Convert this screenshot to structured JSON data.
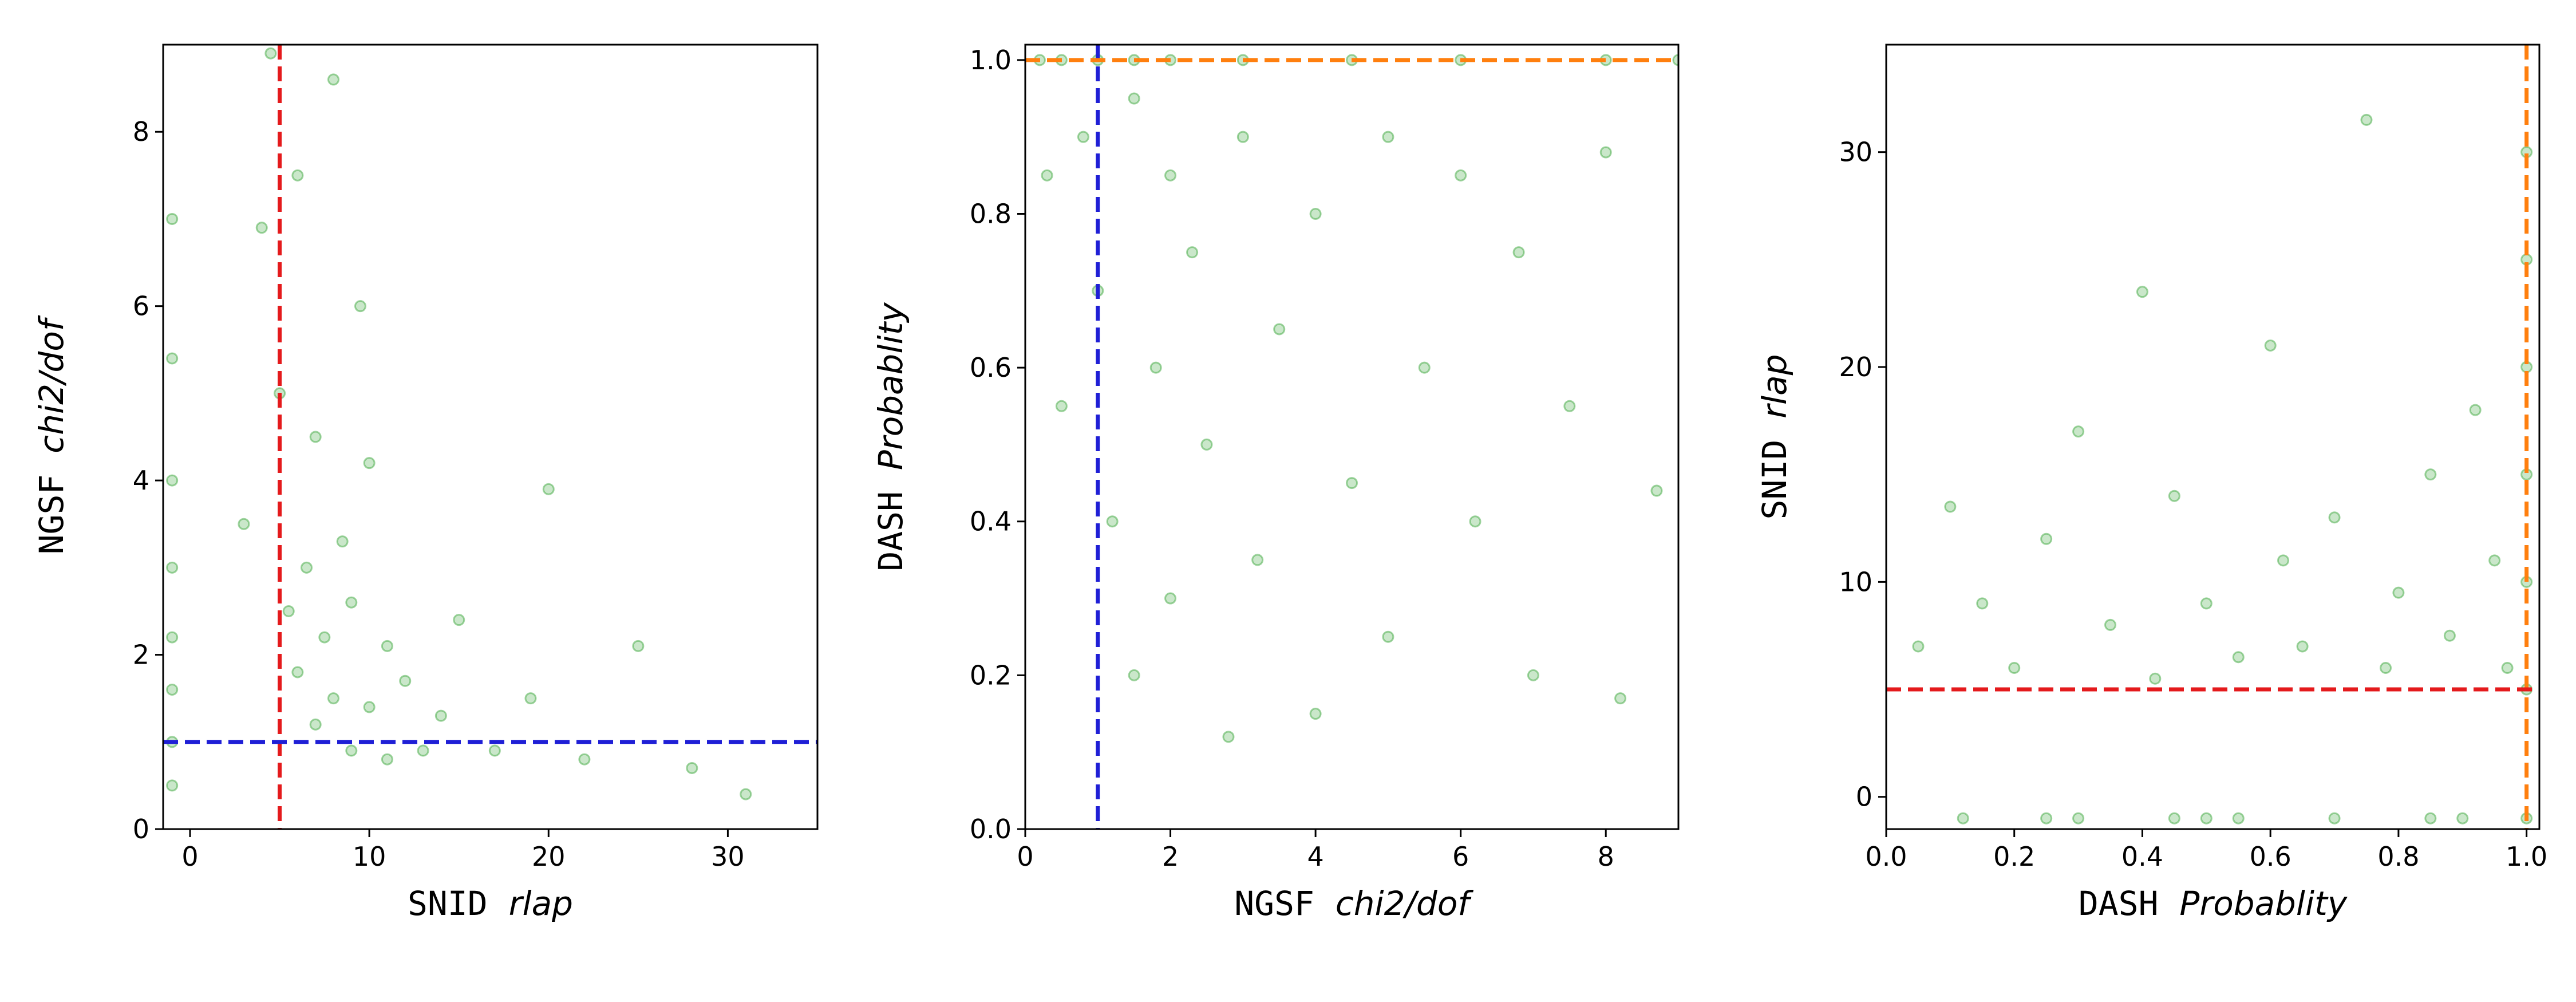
{
  "chart_data": [
    {
      "type": "scatter",
      "xlabel": {
        "prefix": "SNID",
        "name": "rlap"
      },
      "ylabel": {
        "prefix": "NGSF",
        "name": "chi2/dof"
      },
      "color": "#2ca02c",
      "x": [
        -1,
        -1,
        -1,
        -1,
        -1,
        -1,
        -1,
        -1,
        3,
        4,
        4.5,
        5,
        5.5,
        6,
        6,
        6.5,
        7,
        7,
        7.5,
        8,
        8,
        8.5,
        9,
        9,
        9.5,
        10,
        10,
        11,
        11,
        12,
        13,
        14,
        15,
        17,
        19,
        20,
        22,
        25,
        28,
        31
      ],
      "y": [
        0.5,
        1,
        1.6,
        2.2,
        3,
        4,
        5.4,
        7,
        3.5,
        6.9,
        8.9,
        5,
        2.5,
        7.5,
        1.8,
        3,
        1.2,
        4.5,
        2.2,
        8.6,
        1.5,
        3.3,
        0.9,
        2.6,
        6,
        1.4,
        4.2,
        0.8,
        2.1,
        1.7,
        0.9,
        1.3,
        2.4,
        0.9,
        1.5,
        3.9,
        0.8,
        2.1,
        0.7,
        0.4
      ],
      "xlim": [
        -1.5,
        35
      ],
      "ylim": [
        0,
        9
      ],
      "xticks": [
        0,
        10,
        20,
        30
      ],
      "yticks": [
        0,
        2,
        4,
        6,
        8
      ],
      "vlines": [
        {
          "value": 5,
          "color": "#e41a1c"
        }
      ],
      "hlines": [
        {
          "value": 1,
          "color": "#1f1fd6"
        }
      ]
    },
    {
      "type": "scatter",
      "xlabel": {
        "prefix": "NGSF",
        "name": "chi2/dof"
      },
      "ylabel": {
        "prefix": "DASH",
        "name": "Probablity"
      },
      "color": "#2ca02c",
      "x": [
        0.2,
        0.5,
        1,
        1.5,
        2,
        3,
        4.5,
        6,
        8,
        9,
        0.3,
        0.5,
        0.8,
        1,
        1.2,
        1.5,
        1.5,
        1.8,
        2,
        2,
        2.3,
        2.5,
        2.8,
        3,
        3.2,
        3.5,
        4,
        4,
        4.5,
        5,
        5,
        5.5,
        6,
        6.2,
        6.8,
        7,
        7.5,
        8,
        8.2,
        8.7
      ],
      "y": [
        1,
        1,
        1,
        1,
        1,
        1,
        1,
        1,
        1,
        1,
        0.85,
        0.55,
        0.9,
        0.7,
        0.4,
        0.95,
        0.2,
        0.6,
        0.85,
        0.3,
        0.75,
        0.5,
        0.12,
        0.9,
        0.35,
        0.65,
        0.8,
        0.15,
        0.45,
        0.9,
        0.25,
        0.6,
        0.85,
        0.4,
        0.75,
        0.2,
        0.55,
        0.88,
        0.17,
        0.44
      ],
      "xlim": [
        0,
        9
      ],
      "ylim": [
        0,
        1.02
      ],
      "xticks": [
        0,
        2,
        4,
        6,
        8
      ],
      "yticks": [
        {
          "value": 0,
          "label": "0.0"
        },
        0.2,
        0.4,
        0.6,
        0.8,
        {
          "value": 1,
          "label": "1.0"
        }
      ],
      "vlines": [
        {
          "value": 1,
          "color": "#1f1fd6"
        }
      ],
      "hlines": [
        {
          "value": 1,
          "color": "#ff7f0e"
        }
      ]
    },
    {
      "type": "scatter",
      "xlabel": {
        "prefix": "DASH",
        "name": "Probablity"
      },
      "ylabel": {
        "prefix": "SNID",
        "name": "rlap"
      },
      "color": "#2ca02c",
      "x": [
        0.12,
        0.25,
        0.3,
        0.45,
        0.5,
        0.55,
        0.7,
        0.85,
        0.9,
        1,
        1,
        1,
        1,
        1,
        1,
        1,
        0.05,
        0.1,
        0.15,
        0.2,
        0.25,
        0.3,
        0.35,
        0.4,
        0.42,
        0.45,
        0.5,
        0.55,
        0.6,
        0.62,
        0.65,
        0.7,
        0.75,
        0.78,
        0.8,
        0.85,
        0.88,
        0.92,
        0.95,
        0.97
      ],
      "y": [
        -1,
        -1,
        -1,
        -1,
        -1,
        -1,
        -1,
        -1,
        -1,
        -1,
        5,
        10,
        15,
        20,
        25,
        30,
        7,
        13.5,
        9,
        6,
        12,
        17,
        8,
        23.5,
        5.5,
        14,
        9,
        6.5,
        21,
        11,
        7,
        13,
        31.5,
        6,
        9.5,
        15,
        7.5,
        18,
        11,
        6
      ],
      "xlim": [
        0,
        1.02
      ],
      "ylim": [
        -1.5,
        35
      ],
      "xticks": [
        {
          "value": 0,
          "label": "0.0"
        },
        0.2,
        0.4,
        0.6,
        0.8,
        {
          "value": 1,
          "label": "1.0"
        }
      ],
      "yticks": [
        0,
        10,
        20,
        30
      ],
      "hlines": [
        {
          "value": 5,
          "color": "#e41a1c"
        }
      ],
      "vlines": [
        {
          "value": 1,
          "color": "#ff7f0e"
        }
      ]
    }
  ]
}
